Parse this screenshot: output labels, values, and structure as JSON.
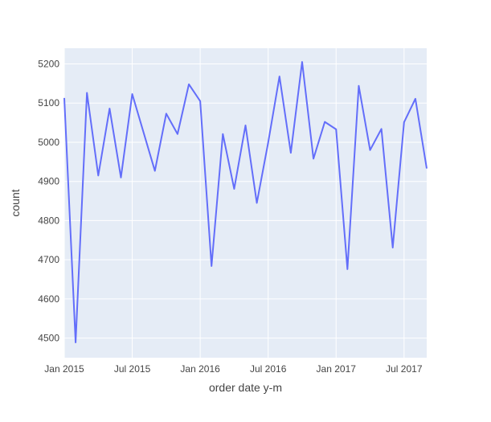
{
  "chart_data": {
    "type": "line",
    "title": "",
    "xlabel": "order date y-m",
    "ylabel": "count",
    "x": [
      "2015-01",
      "2015-02",
      "2015-03",
      "2015-04",
      "2015-05",
      "2015-06",
      "2015-07",
      "2015-08",
      "2015-09",
      "2015-10",
      "2015-11",
      "2015-12",
      "2016-01",
      "2016-02",
      "2016-03",
      "2016-04",
      "2016-05",
      "2016-06",
      "2016-07",
      "2016-08",
      "2016-09",
      "2016-10",
      "2016-11",
      "2016-12",
      "2017-01",
      "2017-02",
      "2017-03",
      "2017-04",
      "2017-05",
      "2017-06",
      "2017-07",
      "2017-08",
      "2017-09"
    ],
    "series": [
      {
        "values": [
          5113,
          4489,
          5126,
          4915,
          5086,
          4910,
          5123,
          5025,
          4927,
          5073,
          5021,
          5148,
          5105,
          4684,
          5021,
          4881,
          5043,
          4845,
          4999,
          5168,
          4973,
          5205,
          4958,
          5052,
          5033,
          4676,
          5144,
          4980,
          5034,
          4731,
          5051,
          5111,
          4933
        ],
        "color": "#636efa"
      }
    ],
    "ylim": [
      4450,
      5240
    ],
    "xlim": [
      "2015-01",
      "2017-09"
    ],
    "xticks": [
      "Jan 2015",
      "Jul 2015",
      "Jan 2016",
      "Jul 2016",
      "Jan 2017",
      "Jul 2017"
    ],
    "yticks": [
      4500,
      4600,
      4700,
      4800,
      4900,
      5000,
      5100,
      5200
    ],
    "grid": true,
    "legend": "none",
    "plot_background": "#e5ecf6",
    "grid_color": "#ffffff"
  }
}
